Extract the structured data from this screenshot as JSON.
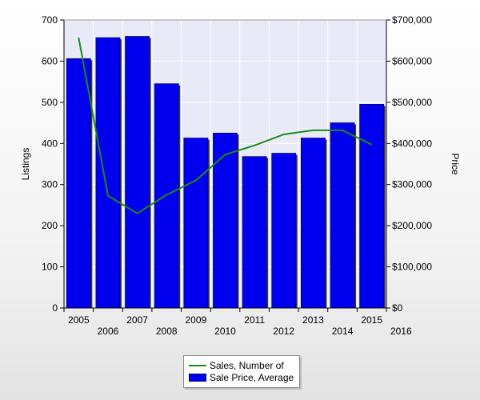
{
  "chart_data": {
    "type": "bar",
    "x": [
      "2005",
      "2006",
      "2007",
      "2008",
      "2009",
      "2010",
      "2011",
      "2012",
      "2013",
      "2014",
      "2015",
      "2016"
    ],
    "categories": [
      "2005",
      "2006",
      "2007",
      "2008",
      "2009",
      "2010",
      "2011",
      "2012",
      "2013",
      "2014",
      "2015"
    ],
    "series": [
      {
        "name": "Sale Price, Average",
        "kind": "bar",
        "axis": "right",
        "color": "#0000ee",
        "values": [
          606000,
          657000,
          660000,
          545000,
          413000,
          425000,
          368000,
          376000,
          413000,
          450000,
          495000
        ]
      },
      {
        "name": "Sales, Number of",
        "kind": "line",
        "axis": "left",
        "color": "#1a8a1a",
        "values": [
          657,
          273,
          230,
          275,
          310,
          373,
          395,
          422,
          432,
          432,
          397
        ]
      }
    ],
    "left_axis": {
      "label": "Listings",
      "ylim": [
        0,
        700
      ],
      "ticks": [
        "0",
        "100",
        "200",
        "300",
        "400",
        "500",
        "600",
        "700"
      ]
    },
    "right_axis": {
      "label": "Price",
      "ylim": [
        0,
        700000
      ],
      "ticks": [
        "$0",
        "$100,000",
        "$200,000",
        "$300,000",
        "$400,000",
        "$500,000",
        "$600,000",
        "$700,000"
      ]
    },
    "grid": true,
    "legend_placement": "bottom-center",
    "plot_background": "#e8eaf8"
  }
}
